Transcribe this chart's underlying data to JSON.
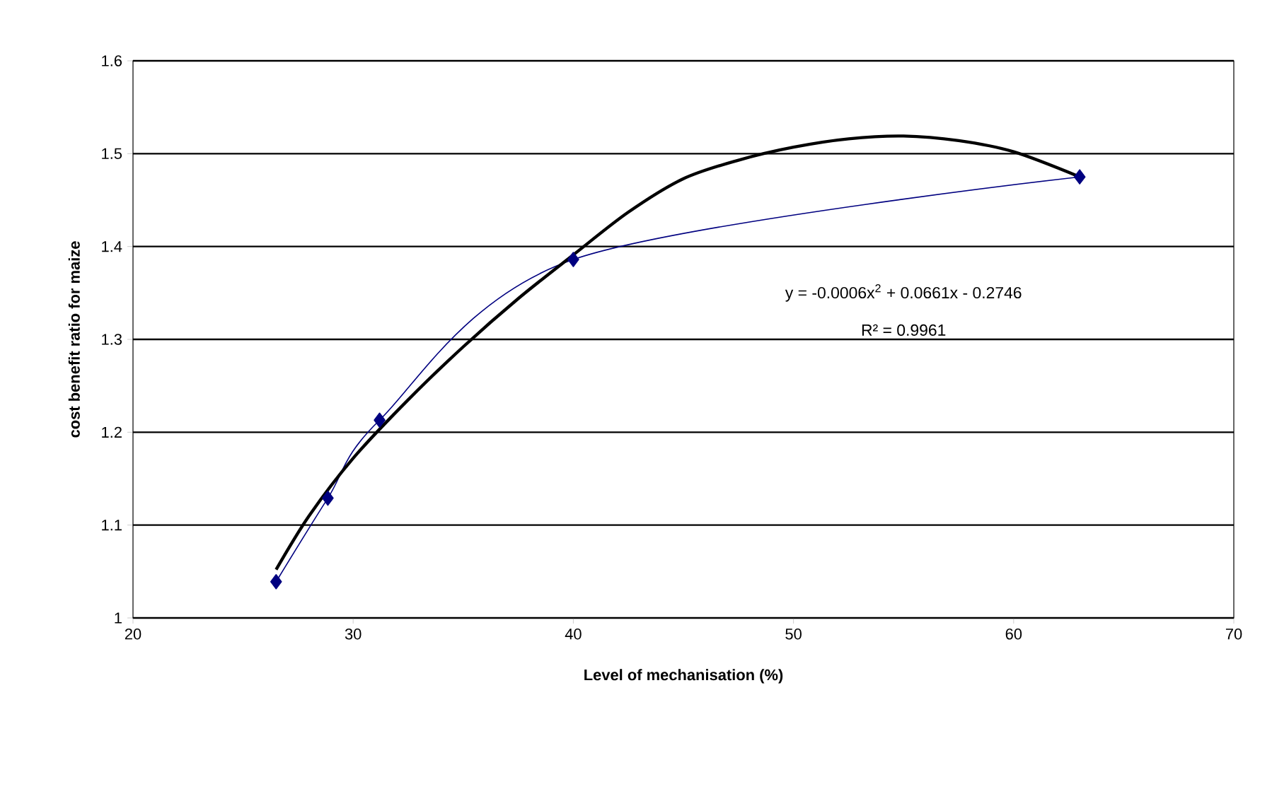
{
  "chart_data": {
    "type": "line",
    "xlabel": "Level of mechanisation (%)",
    "ylabel": "cost benefit ratio for maize",
    "xlim": [
      20,
      70
    ],
    "xticks": [
      20,
      30,
      40,
      50,
      60,
      70
    ],
    "ylim": [
      1,
      1.6
    ],
    "yticks": [
      1,
      1.1,
      1.2,
      1.3,
      1.4,
      1.5,
      1.6
    ],
    "grid": "y",
    "series": [
      {
        "color": "#000080",
        "marker": "diamond",
        "x": [
          26.5,
          28.85,
          31.2,
          40.0,
          63.0
        ],
        "values": [
          1.039,
          1.129,
          1.213,
          1.386,
          1.475
        ]
      },
      {
        "color": "#000000",
        "marker": "none",
        "x": [
          26.5,
          28,
          30,
          32.5,
          35,
          37.5,
          40,
          42.5,
          45,
          47.5,
          50,
          52.5,
          55,
          57.5,
          60,
          63
        ],
        "values": [
          1.052,
          1.11,
          1.172,
          1.235,
          1.292,
          1.344,
          1.391,
          1.437,
          1.473,
          1.493,
          1.507,
          1.516,
          1.519,
          1.514,
          1.502,
          1.475
        ]
      }
    ],
    "annotations": [
      "y = -0.0006x$^{2}$ + 0.0661x - 0.2746",
      "R² = 0.9961"
    ]
  }
}
